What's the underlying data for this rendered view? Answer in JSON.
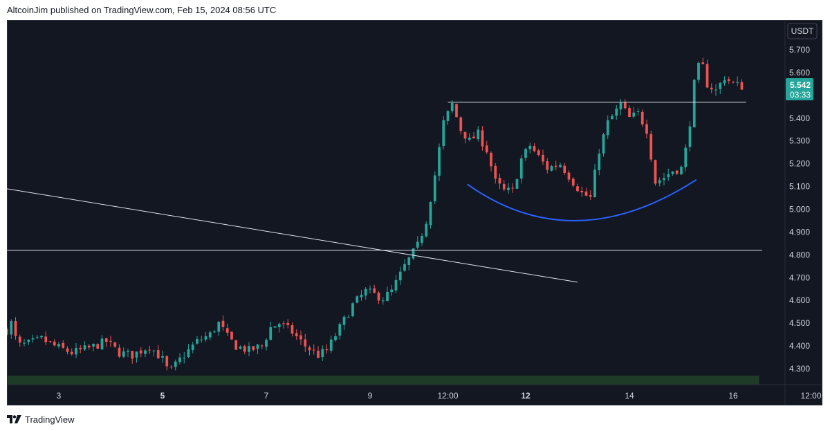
{
  "header": {
    "publisher": "AltcoinJim published on TradingView.com, Feb 15, 2024 08:56 UTC"
  },
  "footer": {
    "brand": "TradingView"
  },
  "price_axis": {
    "currency": "USDT",
    "labels": [
      "5.700",
      "5.600",
      "5.500",
      "5.400",
      "5.300",
      "5.200",
      "5.100",
      "5.000",
      "4.900",
      "4.800",
      "4.700",
      "4.600",
      "4.500",
      "4.400",
      "4.300"
    ],
    "last_price": "5.542",
    "countdown": "03:33"
  },
  "time_axis": {
    "labels": [
      {
        "text": "3",
        "bold": false
      },
      {
        "text": "5",
        "bold": true
      },
      {
        "text": "7",
        "bold": false
      },
      {
        "text": "9",
        "bold": false
      },
      {
        "text": "12:00",
        "bold": false
      },
      {
        "text": "12",
        "bold": true
      },
      {
        "text": "14",
        "bold": false
      },
      {
        "text": "16",
        "bold": false
      },
      {
        "text": "12:00",
        "bold": false
      }
    ]
  },
  "colors": {
    "background": "#131722",
    "up": "#26a69a",
    "down": "#ef5350",
    "arc": "#2962ff",
    "lines": "#e0e3eb",
    "zone": "#1e3b27",
    "price_tag": "#26a69a"
  },
  "chart_data": {
    "type": "candlestick",
    "symbol_currency": "USDT",
    "x_range": [
      "Feb 2, 2024",
      "Feb 17, 2024"
    ],
    "ylim": [
      4.22,
      5.78
    ],
    "x_ticks": [
      "3",
      "5",
      "7",
      "9",
      "12:00",
      "12",
      "14",
      "16",
      "12:00"
    ],
    "y_ticks": [
      4.3,
      4.4,
      4.5,
      4.6,
      4.7,
      4.8,
      4.9,
      5.0,
      5.1,
      5.2,
      5.3,
      5.4,
      5.5,
      5.6,
      5.7
    ],
    "last_price": 5.542,
    "price_path": [
      [
        "Feb 2 00:00",
        4.47
      ],
      [
        "Feb 2 02:00",
        4.5
      ],
      [
        "Feb 2 05:00",
        4.4
      ],
      [
        "Feb 2 10:00",
        4.41
      ],
      [
        "Feb 2 16:00",
        4.43
      ],
      [
        "Feb 2 22:00",
        4.4
      ],
      [
        "Feb 3 06:00",
        4.37
      ],
      [
        "Feb 3 14:00",
        4.39
      ],
      [
        "Feb 3 22:00",
        4.42
      ],
      [
        "Feb 4 04:00",
        4.37
      ],
      [
        "Feb 4 10:00",
        4.36
      ],
      [
        "Feb 4 18:00",
        4.4
      ],
      [
        "Feb 5 00:00",
        4.34
      ],
      [
        "Feb 5 03:00",
        4.28
      ],
      [
        "Feb 5 08:00",
        4.34
      ],
      [
        "Feb 5 16:00",
        4.42
      ],
      [
        "Feb 5 22:00",
        4.45
      ],
      [
        "Feb 6 02:00",
        4.5
      ],
      [
        "Feb 6 06:00",
        4.44
      ],
      [
        "Feb 6 10:00",
        4.4
      ],
      [
        "Feb 6 16:00",
        4.38
      ],
      [
        "Feb 6 22:00",
        4.4
      ],
      [
        "Feb 7 02:00",
        4.48
      ],
      [
        "Feb 7 06:00",
        4.5
      ],
      [
        "Feb 7 12:00",
        4.46
      ],
      [
        "Feb 7 18:00",
        4.4
      ],
      [
        "Feb 8 00:00",
        4.36
      ],
      [
        "Feb 8 04:00",
        4.38
      ],
      [
        "Feb 8 10:00",
        4.48
      ],
      [
        "Feb 8 16:00",
        4.58
      ],
      [
        "Feb 8 22:00",
        4.64
      ],
      [
        "Feb 9 06:00",
        4.61
      ],
      [
        "Feb 9 10:00",
        4.64
      ],
      [
        "Feb 9 16:00",
        4.75
      ],
      [
        "Feb 9 22:00",
        4.84
      ],
      [
        "Feb 10 02:00",
        4.95
      ],
      [
        "Feb 10 06:00",
        5.15
      ],
      [
        "Feb 10 10:00",
        5.38
      ],
      [
        "Feb 10 14:00",
        5.46
      ],
      [
        "Feb 10 18:00",
        5.35
      ],
      [
        "Feb 10 22:00",
        5.3
      ],
      [
        "Feb 11 02:00",
        5.33
      ],
      [
        "Feb 11 06:00",
        5.26
      ],
      [
        "Feb 11 10:00",
        5.12
      ],
      [
        "Feb 11 14:00",
        5.08
      ],
      [
        "Feb 11 18:00",
        5.08
      ],
      [
        "Feb 11 22:00",
        5.22
      ],
      [
        "Feb 12 02:00",
        5.28
      ],
      [
        "Feb 12 06:00",
        5.23
      ],
      [
        "Feb 12 10:00",
        5.18
      ],
      [
        "Feb 12 16:00",
        5.2
      ],
      [
        "Feb 12 22:00",
        5.12
      ],
      [
        "Feb 13 02:00",
        5.07
      ],
      [
        "Feb 13 06:00",
        5.05
      ],
      [
        "Feb 13 10:00",
        5.26
      ],
      [
        "Feb 13 14:00",
        5.38
      ],
      [
        "Feb 13 20:00",
        5.46
      ],
      [
        "Feb 14 00:00",
        5.4
      ],
      [
        "Feb 14 04:00",
        5.42
      ],
      [
        "Feb 14 08:00",
        5.35
      ],
      [
        "Feb 14 12:00",
        5.12
      ],
      [
        "Feb 14 16:00",
        5.14
      ],
      [
        "Feb 14 20:00",
        5.17
      ],
      [
        "Feb 15 00:00",
        5.18
      ],
      [
        "Feb 15 03:00",
        5.3
      ],
      [
        "Feb 15 06:00",
        5.55
      ],
      [
        "Feb 15 09:00",
        5.66
      ],
      [
        "Feb 15 12:00",
        5.55
      ],
      [
        "Feb 15 16:00",
        5.52
      ],
      [
        "Feb 15 20:00",
        5.58
      ],
      [
        "Feb 16 00:00",
        5.55
      ],
      [
        "Feb 16 04:00",
        5.54
      ]
    ],
    "annotations": {
      "resistance": 5.47,
      "support": 4.82,
      "trendline": [
        [
          "Feb 2 00:00",
          5.09
        ],
        [
          "Feb 13 00:00",
          4.68
        ]
      ],
      "rounded_bottom": [
        [
          "Feb 10 21:00",
          5.11
        ],
        [
          "Feb 13 00:00",
          4.95
        ],
        [
          "Feb 15 07:00",
          5.13
        ]
      ],
      "demand_zone": [
        4.22,
        4.27
      ]
    }
  }
}
